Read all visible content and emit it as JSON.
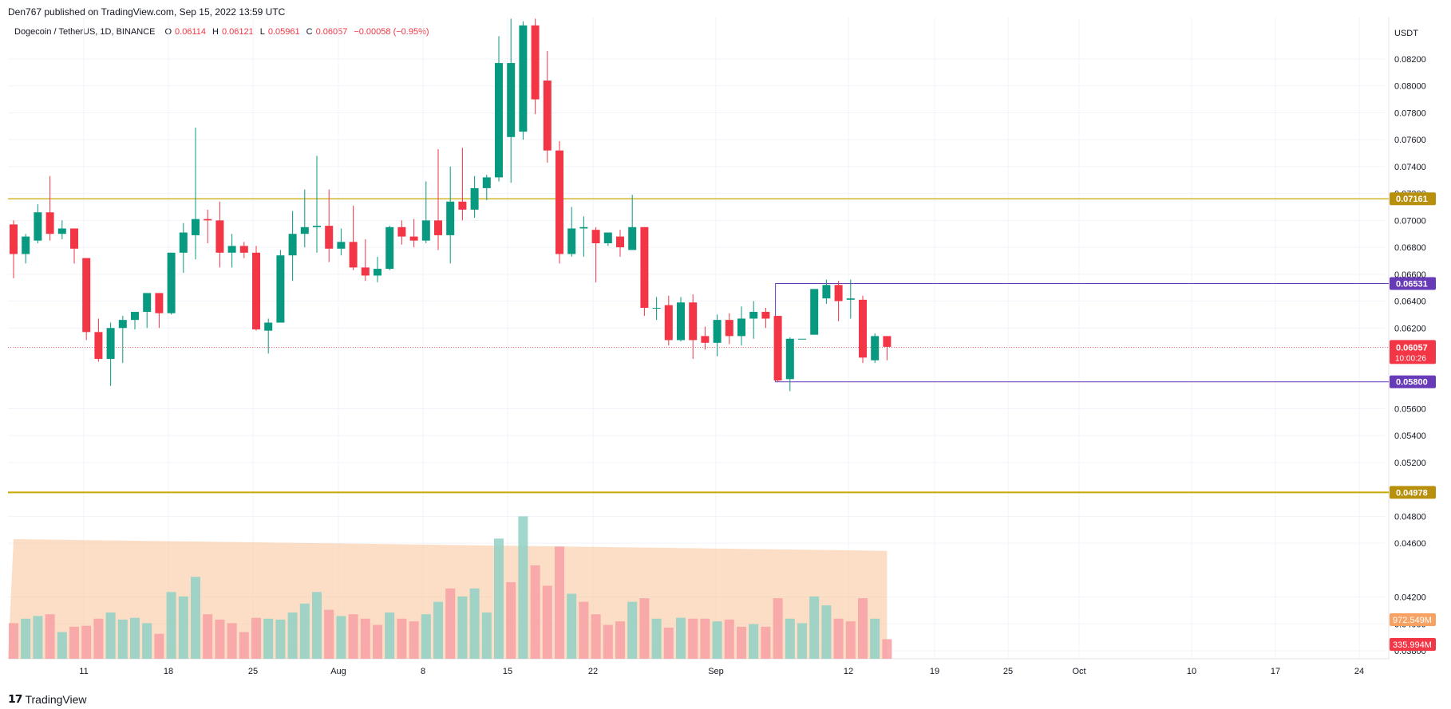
{
  "header": {
    "published_line": "Den767 published on TradingView.com, Sep 15, 2022 13:59 UTC"
  },
  "legend": {
    "symbol": "Dogecoin / TetherUS, 1D, BINANCE",
    "o_key": "O",
    "o_val": "0.06114",
    "h_key": "H",
    "h_val": "0.06121",
    "l_key": "L",
    "l_val": "0.05961",
    "c_key": "C",
    "c_val": "0.06057",
    "change": "−0.00058 (−0.95%)"
  },
  "footer": {
    "brand": "TradingView",
    "logo": "tv-logo-icon"
  },
  "colors": {
    "up": "#089981",
    "down": "#f23645",
    "grid": "#f0f3fa",
    "gold": "#c8a600",
    "gold_label": "#b8900c",
    "purple": "#673ab7",
    "vol_up": "#8fd1c4",
    "vol_down": "#f7a0a3",
    "vol_ma": "#f9c89f"
  },
  "chart_data": {
    "type": "candlestick",
    "price_unit": "USDT",
    "y_ticks": [
      "0.08200",
      "0.08000",
      "0.07800",
      "0.07600",
      "0.07400",
      "0.07200",
      "0.07000",
      "0.06800",
      "0.06600",
      "0.06400",
      "0.06200",
      "0.05600",
      "0.05400",
      "0.05200",
      "0.04800",
      "0.04600",
      "0.04200",
      "0.04000",
      "0.03800"
    ],
    "x_ticks": [
      "11",
      "18",
      "25",
      "Aug",
      "8",
      "15",
      "22",
      "Sep",
      "12",
      "19",
      "25",
      "Oct",
      "10",
      "17",
      "24"
    ],
    "price_range": [
      0.0378,
      0.0837
    ],
    "candles": [
      {
        "o": 0.0697,
        "h": 0.07,
        "l": 0.0657,
        "c": 0.0675
      },
      {
        "o": 0.0675,
        "h": 0.069,
        "l": 0.0668,
        "c": 0.0688
      },
      {
        "o": 0.0685,
        "h": 0.0712,
        "l": 0.0683,
        "c": 0.0706
      },
      {
        "o": 0.0706,
        "h": 0.0733,
        "l": 0.0685,
        "c": 0.069
      },
      {
        "o": 0.069,
        "h": 0.07,
        "l": 0.0686,
        "c": 0.0694
      },
      {
        "o": 0.0694,
        "h": 0.0694,
        "l": 0.0668,
        "c": 0.0679
      },
      {
        "o": 0.0672,
        "h": 0.0672,
        "l": 0.0611,
        "c": 0.0617
      },
      {
        "o": 0.0617,
        "h": 0.0627,
        "l": 0.0595,
        "c": 0.0597
      },
      {
        "o": 0.0597,
        "h": 0.0624,
        "l": 0.0577,
        "c": 0.062
      },
      {
        "o": 0.062,
        "h": 0.0629,
        "l": 0.0594,
        "c": 0.0626
      },
      {
        "o": 0.0626,
        "h": 0.0632,
        "l": 0.0619,
        "c": 0.0632
      },
      {
        "o": 0.0632,
        "h": 0.0645,
        "l": 0.062,
        "c": 0.0646
      },
      {
        "o": 0.0646,
        "h": 0.0646,
        "l": 0.062,
        "c": 0.0631
      },
      {
        "o": 0.0631,
        "h": 0.0676,
        "l": 0.063,
        "c": 0.0676
      },
      {
        "o": 0.0676,
        "h": 0.0698,
        "l": 0.0661,
        "c": 0.0691
      },
      {
        "o": 0.0689,
        "h": 0.0769,
        "l": 0.0671,
        "c": 0.0701
      },
      {
        "o": 0.0701,
        "h": 0.0708,
        "l": 0.0683,
        "c": 0.07
      },
      {
        "o": 0.07,
        "h": 0.0714,
        "l": 0.0665,
        "c": 0.0676
      },
      {
        "o": 0.0676,
        "h": 0.069,
        "l": 0.0665,
        "c": 0.0681
      },
      {
        "o": 0.0681,
        "h": 0.0684,
        "l": 0.0672,
        "c": 0.0676
      },
      {
        "o": 0.0676,
        "h": 0.0681,
        "l": 0.0618,
        "c": 0.0619
      },
      {
        "o": 0.0618,
        "h": 0.0627,
        "l": 0.0601,
        "c": 0.0624
      },
      {
        "o": 0.0624,
        "h": 0.0678,
        "l": 0.0624,
        "c": 0.0674
      },
      {
        "o": 0.0674,
        "h": 0.0707,
        "l": 0.0655,
        "c": 0.069
      },
      {
        "o": 0.069,
        "h": 0.0723,
        "l": 0.068,
        "c": 0.0695
      },
      {
        "o": 0.0695,
        "h": 0.0748,
        "l": 0.0676,
        "c": 0.0696
      },
      {
        "o": 0.0696,
        "h": 0.0723,
        "l": 0.0669,
        "c": 0.0679
      },
      {
        "o": 0.0679,
        "h": 0.0694,
        "l": 0.0674,
        "c": 0.0684
      },
      {
        "o": 0.0684,
        "h": 0.0711,
        "l": 0.0663,
        "c": 0.0665
      },
      {
        "o": 0.0665,
        "h": 0.0686,
        "l": 0.0655,
        "c": 0.0659
      },
      {
        "o": 0.0659,
        "h": 0.0673,
        "l": 0.0654,
        "c": 0.0664
      },
      {
        "o": 0.0664,
        "h": 0.0696,
        "l": 0.0663,
        "c": 0.0695
      },
      {
        "o": 0.0695,
        "h": 0.07,
        "l": 0.0682,
        "c": 0.0688
      },
      {
        "o": 0.0688,
        "h": 0.0701,
        "l": 0.068,
        "c": 0.0685
      },
      {
        "o": 0.0685,
        "h": 0.0729,
        "l": 0.0683,
        "c": 0.07
      },
      {
        "o": 0.07,
        "h": 0.0753,
        "l": 0.0678,
        "c": 0.0689
      },
      {
        "o": 0.0689,
        "h": 0.074,
        "l": 0.0668,
        "c": 0.0714
      },
      {
        "o": 0.0714,
        "h": 0.0754,
        "l": 0.07,
        "c": 0.0708
      },
      {
        "o": 0.0708,
        "h": 0.0733,
        "l": 0.0702,
        "c": 0.0724
      },
      {
        "o": 0.0724,
        "h": 0.0734,
        "l": 0.0715,
        "c": 0.0732
      },
      {
        "o": 0.0732,
        "h": 0.0837,
        "l": 0.0729,
        "c": 0.0817
      },
      {
        "o": 0.0762,
        "h": 0.085,
        "l": 0.0728,
        "c": 0.0817
      },
      {
        "o": 0.0766,
        "h": 0.0848,
        "l": 0.076,
        "c": 0.0845
      },
      {
        "o": 0.0845,
        "h": 0.085,
        "l": 0.0779,
        "c": 0.079
      },
      {
        "o": 0.0804,
        "h": 0.0826,
        "l": 0.0743,
        "c": 0.0752
      },
      {
        "o": 0.0752,
        "h": 0.0759,
        "l": 0.0668,
        "c": 0.0675
      },
      {
        "o": 0.0675,
        "h": 0.071,
        "l": 0.0673,
        "c": 0.0694
      },
      {
        "o": 0.0694,
        "h": 0.0703,
        "l": 0.0673,
        "c": 0.0695
      },
      {
        "o": 0.0693,
        "h": 0.0695,
        "l": 0.0654,
        "c": 0.0683
      },
      {
        "o": 0.0683,
        "h": 0.0689,
        "l": 0.0681,
        "c": 0.0691
      },
      {
        "o": 0.0688,
        "h": 0.0693,
        "l": 0.0673,
        "c": 0.068
      },
      {
        "o": 0.0678,
        "h": 0.0719,
        "l": 0.0678,
        "c": 0.0695
      },
      {
        "o": 0.0695,
        "h": 0.0695,
        "l": 0.0629,
        "c": 0.0635
      },
      {
        "o": 0.0635,
        "h": 0.0643,
        "l": 0.0626,
        "c": 0.0635
      },
      {
        "o": 0.0637,
        "h": 0.0644,
        "l": 0.0607,
        "c": 0.0611
      },
      {
        "o": 0.0611,
        "h": 0.0643,
        "l": 0.061,
        "c": 0.0639
      },
      {
        "o": 0.0639,
        "h": 0.0645,
        "l": 0.0597,
        "c": 0.0611
      },
      {
        "o": 0.0614,
        "h": 0.0621,
        "l": 0.0604,
        "c": 0.0609
      },
      {
        "o": 0.0609,
        "h": 0.063,
        "l": 0.0599,
        "c": 0.0626
      },
      {
        "o": 0.0626,
        "h": 0.0631,
        "l": 0.0608,
        "c": 0.0614
      },
      {
        "o": 0.0614,
        "h": 0.0636,
        "l": 0.0607,
        "c": 0.0627
      },
      {
        "o": 0.0627,
        "h": 0.064,
        "l": 0.0612,
        "c": 0.0632
      },
      {
        "o": 0.0632,
        "h": 0.0635,
        "l": 0.062,
        "c": 0.0627
      },
      {
        "o": 0.0629,
        "h": 0.0629,
        "l": 0.058,
        "c": 0.0581
      },
      {
        "o": 0.0582,
        "h": 0.0613,
        "l": 0.0573,
        "c": 0.0612
      },
      {
        "o": 0.0612,
        "h": 0.0612,
        "l": 0.0612,
        "c": 0.0612
      },
      {
        "o": 0.0615,
        "h": 0.0649,
        "l": 0.0615,
        "c": 0.0649
      },
      {
        "o": 0.0642,
        "h": 0.0656,
        "l": 0.0638,
        "c": 0.0652
      },
      {
        "o": 0.0652,
        "h": 0.0655,
        "l": 0.0625,
        "c": 0.064
      },
      {
        "o": 0.0641,
        "h": 0.0656,
        "l": 0.0627,
        "c": 0.0642
      },
      {
        "o": 0.0641,
        "h": 0.0644,
        "l": 0.0594,
        "c": 0.0598
      },
      {
        "o": 0.0596,
        "h": 0.0616,
        "l": 0.0594,
        "c": 0.0614
      },
      {
        "o": 0.0614,
        "h": 0.0612,
        "l": 0.0596,
        "c": 0.0606
      }
    ],
    "volume": [
      {
        "v": 0.4,
        "up": false
      },
      {
        "v": 0.45,
        "up": true
      },
      {
        "v": 0.48,
        "up": true
      },
      {
        "v": 0.5,
        "up": false
      },
      {
        "v": 0.3,
        "up": true
      },
      {
        "v": 0.36,
        "up": false
      },
      {
        "v": 0.37,
        "up": false
      },
      {
        "v": 0.45,
        "up": false
      },
      {
        "v": 0.52,
        "up": true
      },
      {
        "v": 0.44,
        "up": true
      },
      {
        "v": 0.46,
        "up": true
      },
      {
        "v": 0.4,
        "up": true
      },
      {
        "v": 0.28,
        "up": false
      },
      {
        "v": 0.75,
        "up": true
      },
      {
        "v": 0.7,
        "up": true
      },
      {
        "v": 0.92,
        "up": true
      },
      {
        "v": 0.5,
        "up": false
      },
      {
        "v": 0.44,
        "up": false
      },
      {
        "v": 0.4,
        "up": false
      },
      {
        "v": 0.3,
        "up": false
      },
      {
        "v": 0.46,
        "up": false
      },
      {
        "v": 0.45,
        "up": true
      },
      {
        "v": 0.44,
        "up": true
      },
      {
        "v": 0.52,
        "up": true
      },
      {
        "v": 0.62,
        "up": true
      },
      {
        "v": 0.75,
        "up": true
      },
      {
        "v": 0.55,
        "up": false
      },
      {
        "v": 0.48,
        "up": true
      },
      {
        "v": 0.5,
        "up": false
      },
      {
        "v": 0.45,
        "up": false
      },
      {
        "v": 0.38,
        "up": false
      },
      {
        "v": 0.52,
        "up": true
      },
      {
        "v": 0.45,
        "up": false
      },
      {
        "v": 0.42,
        "up": false
      },
      {
        "v": 0.5,
        "up": true
      },
      {
        "v": 0.64,
        "up": true
      },
      {
        "v": 0.79,
        "up": false
      },
      {
        "v": 0.7,
        "up": true
      },
      {
        "v": 0.79,
        "up": true
      },
      {
        "v": 0.52,
        "up": true
      },
      {
        "v": 1.35,
        "up": true
      },
      {
        "v": 0.86,
        "up": false
      },
      {
        "v": 1.6,
        "up": true
      },
      {
        "v": 1.05,
        "up": false
      },
      {
        "v": 0.82,
        "up": false
      },
      {
        "v": 1.26,
        "up": false
      },
      {
        "v": 0.73,
        "up": true
      },
      {
        "v": 0.64,
        "up": false
      },
      {
        "v": 0.5,
        "up": false
      },
      {
        "v": 0.38,
        "up": false
      },
      {
        "v": 0.42,
        "up": false
      },
      {
        "v": 0.64,
        "up": true
      },
      {
        "v": 0.68,
        "up": false
      },
      {
        "v": 0.45,
        "up": true
      },
      {
        "v": 0.35,
        "up": false
      },
      {
        "v": 0.46,
        "up": true
      },
      {
        "v": 0.45,
        "up": false
      },
      {
        "v": 0.45,
        "up": false
      },
      {
        "v": 0.42,
        "up": true
      },
      {
        "v": 0.44,
        "up": false
      },
      {
        "v": 0.36,
        "up": false
      },
      {
        "v": 0.39,
        "up": true
      },
      {
        "v": 0.36,
        "up": false
      },
      {
        "v": 0.68,
        "up": false
      },
      {
        "v": 0.45,
        "up": true
      },
      {
        "v": 0.4,
        "up": true
      },
      {
        "v": 0.7,
        "up": true
      },
      {
        "v": 0.6,
        "up": true
      },
      {
        "v": 0.45,
        "up": false
      },
      {
        "v": 0.42,
        "up": false
      },
      {
        "v": 0.68,
        "up": false
      },
      {
        "v": 0.45,
        "up": true
      },
      {
        "v": 0.22,
        "up": false
      }
    ],
    "volume_ma": 0.88,
    "levels": {
      "resistance_high": {
        "value": 0.07161,
        "label": "0.07161"
      },
      "range_top": {
        "value": 0.06531,
        "label": "0.06531"
      },
      "current": {
        "value": 0.06057,
        "label": "0.06057",
        "timer": "10:00:26"
      },
      "range_bottom": {
        "value": 0.058,
        "label": "0.05800"
      },
      "support_low": {
        "value": 0.04978,
        "label": "0.04978"
      }
    },
    "volume_labels": {
      "ma": "972.549M",
      "current": "335.994M"
    }
  }
}
